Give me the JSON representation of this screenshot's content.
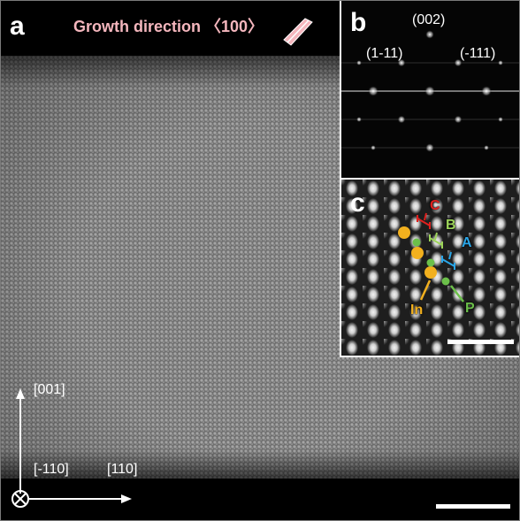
{
  "panel_a": {
    "label": "a",
    "growth_direction": "Growth direction 〈100〉",
    "axes": {
      "vertical": "[001]",
      "into_page": "[-110]",
      "horizontal": "[110]"
    }
  },
  "panel_b": {
    "label": "b",
    "indices": {
      "top": "(002)",
      "left": "(1-11)",
      "right": "(-111)"
    }
  },
  "panel_c": {
    "label": "c",
    "sites": {
      "c": "C",
      "b": "B",
      "a": "A",
      "in": "In",
      "p": "P"
    }
  },
  "colors": {
    "growth_text": "#f4b6bd",
    "site_c": "#e0201e",
    "site_b": "#9dd45a",
    "site_a": "#2aa6e8",
    "indium": "#f2b01e",
    "phosphorus": "#6cc04a"
  }
}
